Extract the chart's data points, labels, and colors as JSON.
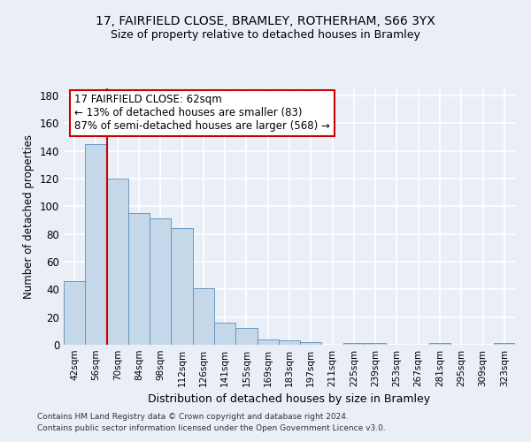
{
  "title_line1": "17, FAIRFIELD CLOSE, BRAMLEY, ROTHERHAM, S66 3YX",
  "title_line2": "Size of property relative to detached houses in Bramley",
  "xlabel": "Distribution of detached houses by size in Bramley",
  "ylabel": "Number of detached properties",
  "bar_labels": [
    "42sqm",
    "56sqm",
    "70sqm",
    "84sqm",
    "98sqm",
    "112sqm",
    "126sqm",
    "141sqm",
    "155sqm",
    "169sqm",
    "183sqm",
    "197sqm",
    "211sqm",
    "225sqm",
    "239sqm",
    "253sqm",
    "267sqm",
    "281sqm",
    "295sqm",
    "309sqm",
    "323sqm"
  ],
  "bar_heights": [
    46,
    145,
    120,
    95,
    91,
    84,
    41,
    16,
    12,
    4,
    3,
    2,
    0,
    1,
    1,
    0,
    0,
    1,
    0,
    0,
    1
  ],
  "bar_color": "#c5d8ea",
  "bar_edgecolor": "#5b8db8",
  "background_color": "#eaeff7",
  "grid_color": "#ffffff",
  "vline_color": "#cc0000",
  "annotation_text": "17 FAIRFIELD CLOSE: 62sqm\n← 13% of detached houses are smaller (83)\n87% of semi-detached houses are larger (568) →",
  "annotation_box_color": "#ffffff",
  "annotation_box_edgecolor": "#cc0000",
  "footnote1": "Contains HM Land Registry data © Crown copyright and database right 2024.",
  "footnote2": "Contains public sector information licensed under the Open Government Licence v3.0.",
  "ylim": [
    0,
    185
  ],
  "yticks": [
    0,
    20,
    40,
    60,
    80,
    100,
    120,
    140,
    160,
    180
  ]
}
